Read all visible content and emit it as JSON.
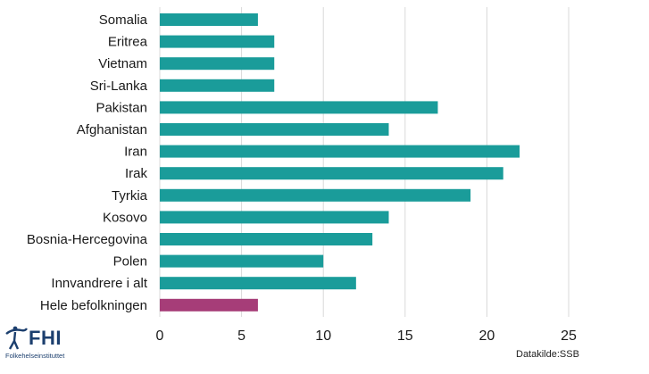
{
  "chart_data": {
    "type": "bar",
    "orientation": "horizontal",
    "categories": [
      "Somalia",
      "Eritrea",
      "Vietnam",
      "Sri-Lanka",
      "Pakistan",
      "Afghanistan",
      "Iran",
      "Irak",
      "Tyrkia",
      "Kosovo",
      "Bosnia-Hercegovina",
      "Polen",
      "Innvandrere i alt",
      "Hele befolkningen"
    ],
    "values": [
      6,
      7,
      7,
      7,
      17,
      14,
      22,
      21,
      19,
      14,
      13,
      10,
      12,
      6
    ],
    "colors": [
      "#1a9c9a",
      "#1a9c9a",
      "#1a9c9a",
      "#1a9c9a",
      "#1a9c9a",
      "#1a9c9a",
      "#1a9c9a",
      "#1a9c9a",
      "#1a9c9a",
      "#1a9c9a",
      "#1a9c9a",
      "#1a9c9a",
      "#1a9c9a",
      "#a63d78"
    ],
    "xlim": [
      0,
      25
    ],
    "xticks": [
      0,
      5,
      10,
      15,
      20,
      25
    ],
    "grid": "vertical",
    "gridColor": "#d9d9d9"
  },
  "logo": {
    "name": "FHI",
    "subtitle": "Folkehelseinstituttet"
  },
  "source": "Datakilde:SSB"
}
